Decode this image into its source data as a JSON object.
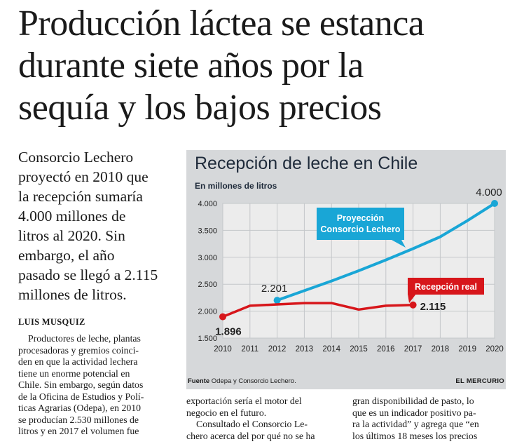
{
  "headline": {
    "lines": [
      "Producción láctea se estanca",
      "durante siete años por la",
      "sequía y los bajos precios"
    ]
  },
  "lead": {
    "lines": [
      "Consorcio Lechero",
      "proyectó en 2010 que",
      "la recepción sumaría",
      "4.000 millones de",
      "litros al 2020. Sin",
      "embargo, el año",
      "pasado se llegó a 2.115",
      "millones de litros."
    ]
  },
  "byline": "LUIS MUSQUIZ",
  "body_col1": {
    "lines": [
      "Productores de leche, plantas",
      "procesadoras y gremios coinci-",
      "den en que la actividad lechera",
      "tiene un enorme potencial en",
      "Chile. Sin embargo, según datos",
      "de la Oficina de Estudios y Polí-",
      "ticas Agrarias (Odepa), en 2010",
      "se producían 2.530 millones de",
      "litros y en 2017 el volumen fue"
    ]
  },
  "body_col2": {
    "lines": [
      "exportación sería el motor del",
      "negocio en el futuro.",
      "Consultado el Consorcio Le-",
      "chero acerca del por qué no se ha"
    ]
  },
  "body_col3": {
    "lines": [
      "gran disponibilidad de pasto, lo",
      "que es un indicador positivo pa-",
      "ra la actividad” y agrega que “en",
      "los últimos 18 meses los precios"
    ]
  },
  "chart_data": {
    "type": "line",
    "title": "Recepción de leche en Chile",
    "ylabel": "En millones de litros",
    "x": [
      2010,
      2011,
      2012,
      2013,
      2014,
      2015,
      2016,
      2017,
      2018,
      2019,
      2020
    ],
    "ylim": [
      1500,
      4000
    ],
    "yticks": [
      "1.500",
      "2.000",
      "2.500",
      "3.000",
      "3.500",
      "4.000"
    ],
    "ytick_values": [
      1500,
      2000,
      2500,
      3000,
      3500,
      4000
    ],
    "grid": true,
    "series": [
      {
        "name": "Recepción real",
        "color": "#d7161b",
        "x": [
          2010,
          2011,
          2012,
          2013,
          2014,
          2015,
          2016,
          2017
        ],
        "values": [
          1896,
          2100,
          2125,
          2150,
          2150,
          2030,
          2100,
          2115
        ],
        "start_label": "1.896",
        "end_label": "2.115"
      },
      {
        "name": "Proyección Consorcio Lechero",
        "name_lines": [
          "Proyección",
          "Consorcio Lechero"
        ],
        "color": "#19a6d6",
        "x": [
          2012,
          2013,
          2014,
          2015,
          2016,
          2017,
          2018,
          2019,
          2020
        ],
        "values": [
          2201,
          2380,
          2560,
          2750,
          2950,
          3160,
          3380,
          3680,
          4000
        ],
        "start_label": "2.201",
        "end_label": "4.000"
      }
    ],
    "source_label": "Fuente",
    "source_text": "Odepa y Consorcio Lechero.",
    "credit": "EL MERCURIO"
  }
}
